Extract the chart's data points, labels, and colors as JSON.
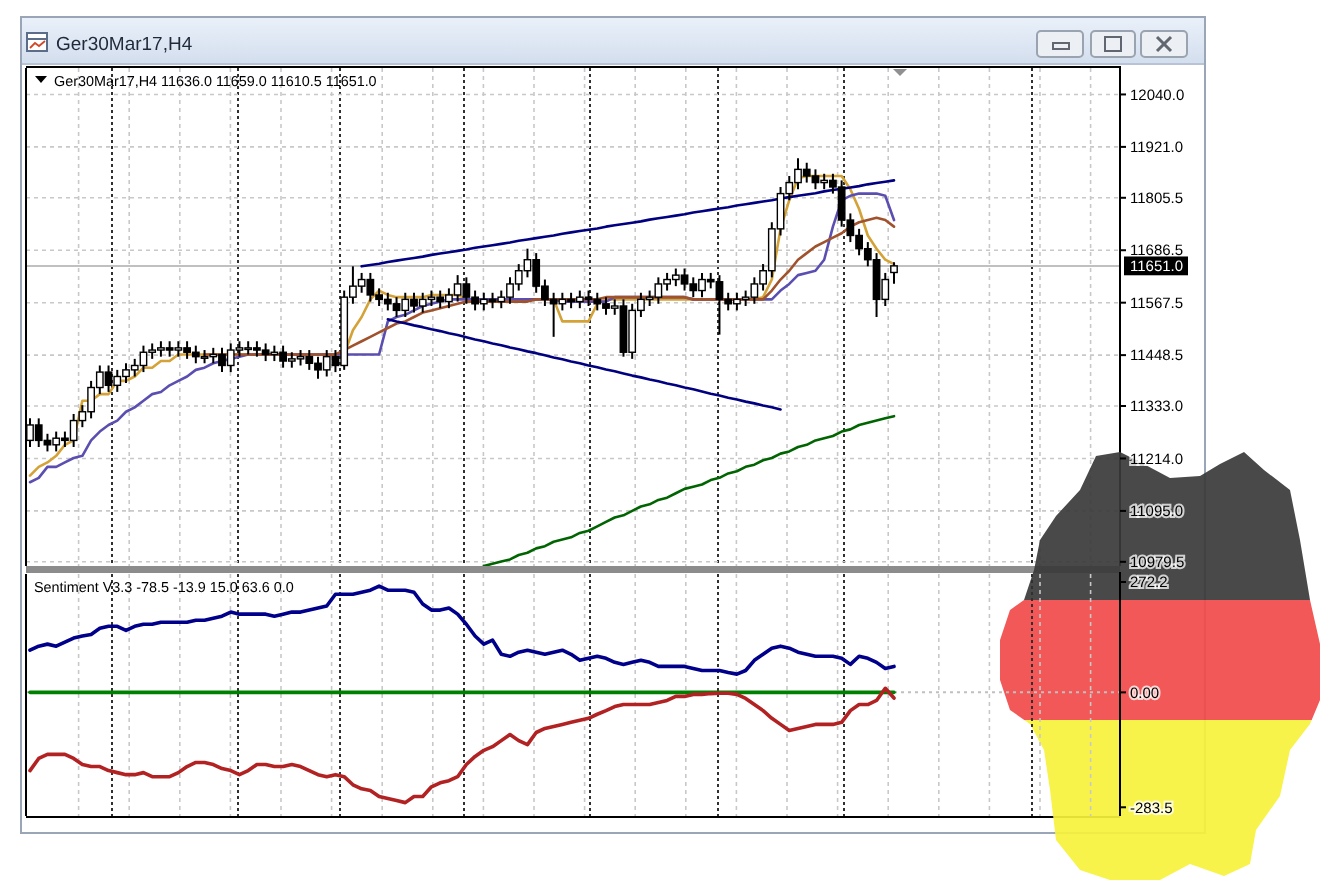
{
  "chart_data": [
    {
      "type": "candlestick",
      "title": "Ger30Mar17,H4",
      "subtitle": "Ger30Mar17,H4  11636.0 11659.0 11610.5 11651.0",
      "categories": [
        null,
        null,
        null,
        null,
        null,
        null,
        null,
        null,
        null,
        null,
        null,
        null,
        null,
        null,
        null,
        null,
        null,
        null,
        null,
        null,
        null,
        null,
        null,
        null,
        null,
        null,
        null,
        null,
        null,
        null,
        null,
        null,
        null,
        null,
        null,
        null,
        null,
        null,
        null,
        null,
        null,
        null,
        null,
        null,
        null,
        null,
        null,
        null,
        null,
        null,
        null,
        null,
        null,
        null,
        null,
        null,
        null,
        null,
        null,
        null,
        null,
        null,
        null,
        null,
        null,
        null,
        null,
        null,
        null,
        null,
        null,
        null,
        null,
        null,
        null,
        null,
        null,
        null,
        null,
        null,
        null,
        null,
        null,
        null,
        null,
        null,
        null,
        null,
        null,
        null,
        null,
        null,
        null,
        null,
        null,
        null,
        null,
        null,
        null,
        null
      ],
      "color": "#000000",
      "ohlc": [
        [
          11255,
          11305,
          11240,
          11290
        ],
        [
          11290,
          11305,
          11240,
          11255
        ],
        [
          11255,
          11270,
          11230,
          11245
        ],
        [
          11245,
          11275,
          11230,
          11260
        ],
        [
          11260,
          11275,
          11240,
          11255
        ],
        [
          11255,
          11315,
          11240,
          11300
        ],
        [
          11300,
          11335,
          11285,
          11320
        ],
        [
          11320,
          11390,
          11305,
          11375
        ],
        [
          11375,
          11425,
          11360,
          11410
        ],
        [
          11410,
          11425,
          11365,
          11380
        ],
        [
          11380,
          11415,
          11365,
          11400
        ],
        [
          11400,
          11430,
          11385,
          11415
        ],
        [
          11415,
          11440,
          11400,
          11425
        ],
        [
          11425,
          11470,
          11410,
          11455
        ],
        [
          11455,
          11475,
          11440,
          11460
        ],
        [
          11460,
          11480,
          11445,
          11465
        ],
        [
          11465,
          11480,
          11445,
          11460
        ],
        [
          11460,
          11480,
          11445,
          11465
        ],
        [
          11465,
          11480,
          11440,
          11455
        ],
        [
          11455,
          11470,
          11430,
          11445
        ],
        [
          11445,
          11460,
          11430,
          11445
        ],
        [
          11445,
          11465,
          11430,
          11450
        ],
        [
          11450,
          11465,
          11410,
          11425
        ],
        [
          11425,
          11475,
          11410,
          11460
        ],
        [
          11460,
          11480,
          11445,
          11465
        ],
        [
          11465,
          11480,
          11450,
          11465
        ],
        [
          11465,
          11480,
          11445,
          11460
        ],
        [
          11460,
          11475,
          11435,
          11450
        ],
        [
          11450,
          11470,
          11435,
          11455
        ],
        [
          11455,
          11470,
          11420,
          11435
        ],
        [
          11435,
          11455,
          11420,
          11440
        ],
        [
          11440,
          11460,
          11425,
          11445
        ],
        [
          11445,
          11460,
          11415,
          11430
        ],
        [
          11430,
          11445,
          11395,
          11415
        ],
        [
          11415,
          11460,
          11400,
          11445
        ],
        [
          11445,
          11460,
          11410,
          11425
        ],
        [
          11425,
          11595,
          11415,
          11580
        ],
        [
          11580,
          11650,
          11565,
          11605
        ],
        [
          11605,
          11635,
          11590,
          11620
        ],
        [
          11620,
          11635,
          11570,
          11585
        ],
        [
          11585,
          11600,
          11560,
          11575
        ],
        [
          11575,
          11590,
          11550,
          11565
        ],
        [
          11565,
          11580,
          11535,
          11550
        ],
        [
          11550,
          11590,
          11535,
          11575
        ],
        [
          11575,
          11590,
          11545,
          11560
        ],
        [
          11560,
          11590,
          11545,
          11575
        ],
        [
          11575,
          11595,
          11560,
          11580
        ],
        [
          11580,
          11595,
          11555,
          11570
        ],
        [
          11570,
          11600,
          11555,
          11585
        ],
        [
          11585,
          11630,
          11570,
          11610
        ],
        [
          11610,
          11625,
          11565,
          11580
        ],
        [
          11580,
          11595,
          11550,
          11565
        ],
        [
          11565,
          11590,
          11550,
          11575
        ],
        [
          11575,
          11590,
          11555,
          11570
        ],
        [
          11570,
          11595,
          11555,
          11580
        ],
        [
          11580,
          11625,
          11565,
          11610
        ],
        [
          11610,
          11655,
          11595,
          11640
        ],
        [
          11640,
          11690,
          11625,
          11665
        ],
        [
          11665,
          11680,
          11590,
          11605
        ],
        [
          11605,
          11620,
          11560,
          11575
        ],
        [
          11575,
          11590,
          11490,
          11565
        ],
        [
          11565,
          11590,
          11550,
          11575
        ],
        [
          11575,
          11590,
          11555,
          11570
        ],
        [
          11570,
          11595,
          11555,
          11580
        ],
        [
          11580,
          11595,
          11560,
          11575
        ],
        [
          11575,
          11590,
          11550,
          11565
        ],
        [
          11565,
          11580,
          11540,
          11555
        ],
        [
          11555,
          11575,
          11540,
          11560
        ],
        [
          11560,
          11575,
          11445,
          11455
        ],
        [
          11455,
          11565,
          11440,
          11550
        ],
        [
          11550,
          11590,
          11535,
          11575
        ],
        [
          11575,
          11595,
          11560,
          11580
        ],
        [
          11580,
          11625,
          11565,
          11610
        ],
        [
          11610,
          11635,
          11595,
          11620
        ],
        [
          11620,
          11645,
          11605,
          11630
        ],
        [
          11630,
          11645,
          11595,
          11610
        ],
        [
          11610,
          11625,
          11580,
          11595
        ],
        [
          11595,
          11635,
          11580,
          11620
        ],
        [
          11620,
          11635,
          11600,
          11615
        ],
        [
          11615,
          11630,
          11495,
          11575
        ],
        [
          11575,
          11590,
          11550,
          11565
        ],
        [
          11565,
          11590,
          11550,
          11575
        ],
        [
          11575,
          11595,
          11560,
          11580
        ],
        [
          11580,
          11625,
          11565,
          11610
        ],
        [
          11610,
          11655,
          11595,
          11640
        ],
        [
          11640,
          11750,
          11625,
          11735
        ],
        [
          11735,
          11830,
          11720,
          11815
        ],
        [
          11815,
          11855,
          11800,
          11840
        ],
        [
          11840,
          11895,
          11825,
          11870
        ],
        [
          11870,
          11885,
          11840,
          11855
        ],
        [
          11855,
          11870,
          11825,
          11840
        ],
        [
          11840,
          11860,
          11825,
          11845
        ],
        [
          11845,
          11860,
          11815,
          11830
        ],
        [
          11830,
          11845,
          11740,
          11755
        ],
        [
          11755,
          11770,
          11705,
          11720
        ],
        [
          11720,
          11735,
          11675,
          11690
        ],
        [
          11690,
          11705,
          11650,
          11665
        ],
        [
          11665,
          11680,
          11535,
          11575
        ],
        [
          11575,
          11635,
          11560,
          11620
        ],
        [
          11636,
          11659,
          11610.5,
          11651
        ]
      ],
      "series": [
        {
          "type": "line",
          "color": "#d4a237",
          "values": [
            11175,
            11195,
            11205,
            11220,
            11245,
            11255,
            11345,
            11345,
            11360,
            11360,
            11390,
            11390,
            11400,
            11420,
            11420,
            11435,
            11435,
            11450,
            11450,
            11450,
            11450,
            11450,
            11450,
            11450,
            11450,
            11450,
            11450,
            11450,
            11450,
            11450,
            11450,
            11450,
            11450,
            11450,
            11450,
            11450,
            11450,
            11505,
            11535,
            11575,
            11595,
            11585,
            11580,
            11580,
            11580,
            11580,
            11585,
            11585,
            11585,
            11585,
            11575,
            11575,
            11575,
            11575,
            11575,
            11575,
            11575,
            11575,
            11575,
            11575,
            11575,
            11525,
            11525,
            11525,
            11525,
            11565,
            11575,
            11575,
            11575,
            11575,
            11575,
            11575,
            11575,
            11575,
            11575,
            11575,
            11575,
            11575,
            11575,
            11575,
            11575,
            11575,
            11575,
            11575,
            11580,
            11620,
            11735,
            11800,
            11850,
            11855,
            11855,
            11855,
            11855,
            11855,
            11825,
            11780,
            11720,
            11690,
            11665,
            11655
          ]
        },
        {
          "type": "line",
          "color": "#5a4fb0",
          "values": [
            11160,
            11170,
            11195,
            11195,
            11205,
            11215,
            11220,
            11255,
            11275,
            11290,
            11300,
            11320,
            11330,
            11345,
            11360,
            11365,
            11380,
            11390,
            11400,
            11415,
            11420,
            11430,
            11435,
            11440,
            11445,
            11450,
            11450,
            11450,
            11450,
            11450,
            11450,
            11450,
            11450,
            11450,
            11450,
            11450,
            11450,
            11450,
            11450,
            11450,
            11450,
            11525,
            11535,
            11540,
            11550,
            11560,
            11565,
            11570,
            11575,
            11575,
            11575,
            11575,
            11575,
            11575,
            11575,
            11575,
            11575,
            11575,
            11575,
            11575,
            11575,
            11570,
            11570,
            11570,
            11570,
            11570,
            11570,
            11580,
            11580,
            11580,
            11580,
            11580,
            11580,
            11580,
            11580,
            11580,
            11575,
            11575,
            11575,
            11575,
            11575,
            11575,
            11575,
            11575,
            11575,
            11575,
            11595,
            11610,
            11630,
            11635,
            11640,
            11665,
            11740,
            11800,
            11810,
            11815,
            11815,
            11815,
            11810,
            11755
          ]
        },
        {
          "type": "line",
          "color": "#a0522d",
          "values": [
            null,
            null,
            null,
            null,
            null,
            null,
            null,
            null,
            null,
            null,
            null,
            null,
            null,
            null,
            null,
            null,
            null,
            null,
            null,
            null,
            11450,
            11450,
            11450,
            11450,
            11450,
            11450,
            11450,
            11450,
            11450,
            11450,
            11450,
            11450,
            11450,
            11450,
            11450,
            11450,
            11460,
            11470,
            11480,
            11490,
            11500,
            11510,
            11520,
            11525,
            11535,
            11545,
            11550,
            11555,
            11560,
            11565,
            11570,
            11570,
            11570,
            11570,
            11570,
            11570,
            11570,
            11570,
            11575,
            11575,
            11575,
            11575,
            11575,
            11575,
            11575,
            11575,
            11580,
            11580,
            11580,
            11580,
            11580,
            11580,
            11580,
            11580,
            11580,
            11580,
            11575,
            11575,
            11575,
            11575,
            11575,
            11575,
            11575,
            11575,
            11575,
            11595,
            11620,
            11640,
            11665,
            11680,
            11695,
            11705,
            11715,
            11725,
            11740,
            11750,
            11755,
            11760,
            11755,
            11740
          ]
        },
        {
          "type": "line",
          "color": "#006400",
          "values": [
            null,
            null,
            null,
            null,
            null,
            null,
            null,
            null,
            null,
            null,
            null,
            null,
            null,
            null,
            null,
            null,
            null,
            null,
            null,
            null,
            null,
            null,
            null,
            null,
            null,
            null,
            null,
            null,
            null,
            null,
            null,
            null,
            null,
            null,
            null,
            null,
            null,
            null,
            null,
            null,
            null,
            null,
            null,
            null,
            null,
            null,
            null,
            null,
            null,
            null,
            null,
            null,
            10970,
            10975,
            10980,
            10985,
            10995,
            11000,
            11010,
            11015,
            11025,
            11030,
            11035,
            11045,
            11050,
            11060,
            11070,
            11080,
            11085,
            11095,
            11105,
            11110,
            11120,
            11125,
            11135,
            11145,
            11150,
            11155,
            11165,
            11170,
            11180,
            11185,
            11195,
            11200,
            11210,
            11215,
            11225,
            11230,
            11240,
            11245,
            11255,
            11260,
            11265,
            11275,
            11280,
            11290,
            11295,
            11300,
            11305,
            11310
          ]
        },
        {
          "type": "line",
          "color": "#000080",
          "values": [
            null,
            null,
            null,
            null,
            null,
            null,
            null,
            null,
            null,
            null,
            null,
            null,
            null,
            null,
            null,
            null,
            null,
            null,
            null,
            null,
            null,
            null,
            null,
            null,
            null,
            null,
            null,
            null,
            null,
            null,
            null,
            null,
            null,
            null,
            null,
            null,
            null,
            null,
            11650,
            11653,
            11656,
            11660,
            11663,
            11666,
            11669,
            11672,
            11676,
            11679,
            11682,
            11685,
            11688,
            11692,
            11695,
            11698,
            11701,
            11704,
            11708,
            11711,
            11714,
            11717,
            11720,
            11724,
            11727,
            11730,
            11733,
            11736,
            11740,
            11743,
            11746,
            11749,
            11752,
            11756,
            11759,
            11762,
            11765,
            11768,
            11772,
            11775,
            11778,
            11781,
            11784,
            11788,
            11791,
            11794,
            11797,
            11800,
            11804,
            11807,
            11810,
            11813,
            11816,
            11820,
            11823,
            11826,
            11829,
            11832,
            11836,
            11839,
            11842,
            11845
          ]
        },
        {
          "type": "line",
          "color": "#000080",
          "values": [
            null,
            null,
            null,
            null,
            null,
            null,
            null,
            null,
            null,
            null,
            null,
            null,
            null,
            null,
            null,
            null,
            null,
            null,
            null,
            null,
            null,
            null,
            null,
            null,
            null,
            null,
            null,
            null,
            null,
            null,
            null,
            null,
            null,
            null,
            null,
            null,
            null,
            null,
            null,
            null,
            null,
            11530,
            11525,
            11521,
            11516,
            11512,
            11507,
            11503,
            11498,
            11494,
            11489,
            11484,
            11480,
            11475,
            11471,
            11466,
            11462,
            11457,
            11453,
            11448,
            11443,
            11439,
            11434,
            11430,
            11425,
            11421,
            11416,
            11412,
            11407,
            11402,
            11398,
            11393,
            11389,
            11384,
            11380,
            11375,
            11371,
            11366,
            11361,
            11357,
            11352,
            11348,
            11343,
            11339,
            11334,
            11330,
            11325,
            null,
            null,
            null,
            null,
            null,
            null,
            null,
            null,
            null,
            null,
            null,
            null,
            null
          ]
        }
      ],
      "ylim": [
        10970,
        12100
      ],
      "yticks": [
        {
          "value": 12040,
          "label": "12040.0"
        },
        {
          "value": 11921,
          "label": "11921.0"
        },
        11805.5,
        11686.5,
        11567.5,
        11448.5,
        {
          "value": 11333,
          "label": "11333.0"
        },
        {
          "value": 11214,
          "label": "11214.0"
        },
        {
          "value": 11095,
          "label": "11095.0"
        },
        10979.5
      ],
      "grid": true,
      "ref_lines": [
        {
          "axis": "y",
          "value": 11651,
          "label": "11651.0",
          "color": "#c0c0c0"
        }
      ],
      "tick_labels": "y"
    },
    {
      "type": "line",
      "title": "Sentiment V3.3 -78.5 -13.9 15.0 63.6 0.0",
      "categories": [
        null,
        null,
        null,
        null,
        null,
        null,
        null,
        null,
        null,
        null,
        null,
        null,
        null,
        null,
        null,
        null,
        null,
        null,
        null,
        null,
        null,
        null,
        null,
        null,
        null,
        null,
        null,
        null,
        null,
        null,
        null,
        null,
        null,
        null,
        null,
        null,
        null,
        null,
        null,
        null,
        null,
        null,
        null,
        null,
        null,
        null,
        null,
        null,
        null,
        null,
        null,
        null,
        null,
        null,
        null,
        null,
        null,
        null,
        null,
        null,
        null,
        null,
        null,
        null,
        null,
        null,
        null,
        null,
        null,
        null,
        null,
        null,
        null,
        null,
        null,
        null,
        null,
        null,
        null,
        null,
        null,
        null,
        null,
        null,
        null,
        null,
        null,
        null,
        null,
        null,
        null,
        null,
        null,
        null,
        null,
        null,
        null,
        null,
        null,
        null
      ],
      "series": [
        {
          "color": "#008000",
          "values": [
            0,
            0,
            0,
            0,
            0,
            0,
            0,
            0,
            0,
            0,
            0,
            0,
            0,
            0,
            0,
            0,
            0,
            0,
            0,
            0,
            0,
            0,
            0,
            0,
            0,
            0,
            0,
            0,
            0,
            0,
            0,
            0,
            0,
            0,
            0,
            0,
            0,
            0,
            0,
            0,
            0,
            0,
            0,
            0,
            0,
            0,
            0,
            0,
            0,
            0,
            0,
            0,
            0,
            0,
            0,
            0,
            0,
            0,
            0,
            0,
            0,
            0,
            0,
            0,
            0,
            0,
            0,
            0,
            0,
            0,
            0,
            0,
            0,
            0,
            0,
            0,
            0,
            0,
            0,
            0,
            0,
            0,
            0,
            0,
            0,
            0,
            0,
            0,
            0,
            0,
            0,
            0,
            0,
            0,
            0,
            0,
            0,
            0,
            0,
            0
          ]
        },
        {
          "color": "#00008b",
          "values": [
            104,
            114,
            119,
            114,
            124,
            134,
            139,
            143,
            158,
            163,
            163,
            153,
            163,
            168,
            168,
            173,
            173,
            173,
            173,
            178,
            178,
            183,
            188,
            198,
            193,
            193,
            193,
            193,
            188,
            193,
            198,
            198,
            203,
            208,
            213,
            242,
            242,
            242,
            247,
            252,
            262,
            252,
            252,
            252,
            247,
            218,
            203,
            203,
            208,
            193,
            168,
            139,
            119,
            129,
            94,
            89,
            99,
            104,
            99,
            94,
            99,
            104,
            94,
            79,
            84,
            89,
            84,
            74,
            69,
            74,
            79,
            74,
            64,
            64,
            64,
            64,
            59,
            54,
            54,
            54,
            49,
            45,
            54,
            79,
            94,
            109,
            114,
            109,
            99,
            94,
            89,
            89,
            89,
            84,
            69,
            89,
            84,
            74,
            59,
            64
          ]
        },
        {
          "color": "#b22222",
          "values": [
            -193,
            -163,
            -153,
            -153,
            -153,
            -163,
            -178,
            -183,
            -183,
            -193,
            -198,
            -203,
            -203,
            -198,
            -208,
            -208,
            -208,
            -198,
            -183,
            -173,
            -173,
            -178,
            -188,
            -193,
            -203,
            -193,
            -178,
            -178,
            -183,
            -183,
            -178,
            -183,
            -193,
            -203,
            -208,
            -203,
            -208,
            -228,
            -238,
            -242,
            -257,
            -262,
            -267,
            -272,
            -257,
            -257,
            -233,
            -223,
            -218,
            -208,
            -178,
            -158,
            -143,
            -134,
            -119,
            -104,
            -119,
            -129,
            -99,
            -89,
            -84,
            -79,
            -74,
            -69,
            -64,
            -54,
            -45,
            -35,
            -30,
            -30,
            -30,
            -30,
            -25,
            -20,
            -10,
            -10,
            -5,
            -5,
            -3,
            -2,
            -2,
            -5,
            -15,
            -30,
            -45,
            -64,
            -79,
            -94,
            -89,
            -84,
            -79,
            -79,
            -79,
            -74,
            -45,
            -30,
            -30,
            -20,
            10,
            -14
          ]
        }
      ],
      "ylim": [
        -305,
        292
      ],
      "yticks": [
        272.2,
        {
          "value": 0,
          "label": "0.00"
        },
        -283.5
      ],
      "grid": "x",
      "ref_lines": [
        {
          "axis": "y",
          "value": 0,
          "color": "#c0c0c0",
          "line_style": "dotted"
        }
      ],
      "tick_labels": "y"
    }
  ]
}
